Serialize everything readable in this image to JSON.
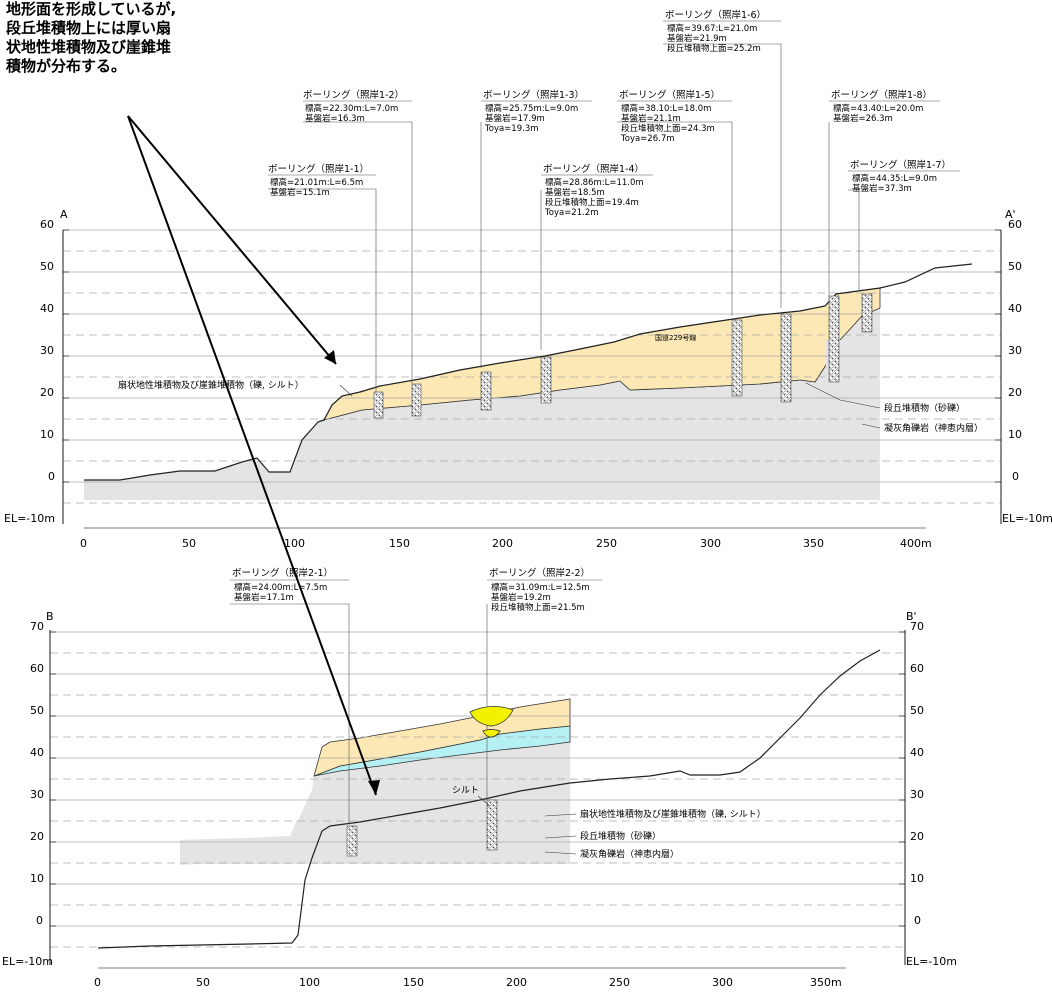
{
  "note": {
    "lines": [
      "地形面を形成しているが,",
      "段丘堆積物上には厚い扇",
      "状地性堆積物及び崖錐堆",
      "積物が分布する。"
    ]
  },
  "sectionA": {
    "left_label": "A",
    "right_label": "A'",
    "el_label": "EL=-10m",
    "y_ticks": [
      "60",
      "50",
      "40",
      "30",
      "20",
      "10",
      "0"
    ],
    "x_ticks": [
      "0",
      "50",
      "100",
      "150",
      "200",
      "250",
      "300",
      "350",
      "400m"
    ],
    "labels": {
      "fan": "扇状地性堆積物及び崖錐堆積物（礫, シルト）",
      "terrace": "段丘堆積物（砂礫）",
      "tuff": "凝灰角礫岩（神恵内層）",
      "road": "国道229号線"
    },
    "boreholes": [
      {
        "title": "ボーリング（照岸1-1）",
        "lines": [
          "標高=21.01m:L=6.5m",
          "基盤岩=15.1m"
        ]
      },
      {
        "title": "ボーリング（照岸1-2）",
        "lines": [
          "標高=22.30m:L=7.0m",
          "基盤岩=16.3m"
        ]
      },
      {
        "title": "ボーリング（照岸1-3）",
        "lines": [
          "標高=25.75m:L=9.0m",
          "基盤岩=17.9m",
          "Toya=19.3m"
        ]
      },
      {
        "title": "ボーリング（照岸1-4）",
        "lines": [
          "標高=28.86m:L=11.0m",
          "基盤岩=18.5m",
          "段丘堆積物上面=19.4m",
          "Toya=21.2m"
        ]
      },
      {
        "title": "ボーリング（照岸1-5）",
        "lines": [
          "標高=38.10:L=18.0m",
          "基盤岩=21.1m",
          "段丘堆積物上面=24.3m",
          "Toya=26.7m"
        ]
      },
      {
        "title": "ボーリング（照岸1-6）",
        "lines": [
          "標高=39.67:L=21.0m",
          "基盤岩=21.9m",
          "段丘堆積物上面=25.2m"
        ]
      },
      {
        "title": "ボーリング（照岸1-8）",
        "lines": [
          "標高=43.40:L=20.0m",
          "基盤岩=26.3m"
        ]
      },
      {
        "title": "ボーリング（照岸1-7）",
        "lines": [
          "標高=44.35:L=9.0m",
          "基盤岩=37.3m"
        ]
      }
    ]
  },
  "sectionB": {
    "left_label": "B",
    "right_label": "B'",
    "el_label": "EL=-10m",
    "y_ticks": [
      "70",
      "60",
      "50",
      "40",
      "30",
      "20",
      "10",
      "0"
    ],
    "x_ticks": [
      "0",
      "50",
      "100",
      "150",
      "200",
      "250",
      "300",
      "350m"
    ],
    "labels": {
      "fan": "扇状地性堆積物及び崖錐堆積物（礫, シルト）",
      "terrace": "段丘堆積物（砂礫）",
      "tuff": "凝灰角礫岩（神恵内層）",
      "silt": "シルト"
    },
    "boreholes": [
      {
        "title": "ボーリング（照岸2-1）",
        "lines": [
          "標高=24.00m:L=7.5m",
          "基盤岩=17.1m"
        ]
      },
      {
        "title": "ボーリング（照岸2-2）",
        "lines": [
          "標高=31.09m:L=12.5m",
          "基盤岩=19.2m",
          "段丘堆積物上面=21.5m"
        ]
      }
    ]
  },
  "colors": {
    "fan": "#fbe8b4",
    "terrace": "#b5f0f5",
    "bedrock": "#e4e4e4",
    "silt": "#f2f200"
  }
}
